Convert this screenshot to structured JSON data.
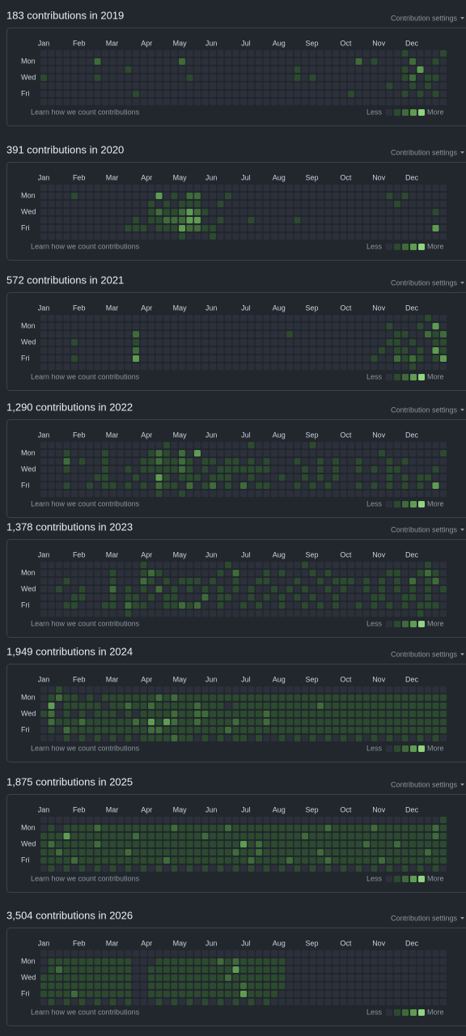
{
  "years": [
    {
      "title": "183 contributions in 2019",
      "settings": "Contribution settings",
      "months": [
        "Jan",
        "Feb",
        "Mar",
        "Apr",
        "May",
        "Jun",
        "Jul",
        "Aug",
        "Sep",
        "Oct",
        "Nov",
        "Dec"
      ],
      "days": [
        "Mon",
        "Wed",
        "Fri"
      ],
      "learn": "Learn how we count contributions",
      "less": "Less",
      "more": "More",
      "grid": [
        "00000000000000000000000000000000000000000000000100001",
        "00000002000000000020000000000000000000000201000020010",
        "00000000000100000000000000000000010000000000000103000",
        "10000001000000000001000000000000010100000000000120110",
        "00000000000000000000000000000000000000000000010010100",
        "00000000000010000000000000000000000000001000000101010",
        "00000000000000000000000000000000000000000000000000000"
      ]
    },
    {
      "title": "391 contributions in 2020",
      "settings": "Contribution settings",
      "months": [
        "Jan",
        "Feb",
        "Mar",
        "Apr",
        "May",
        "Jun",
        "Jul",
        "Aug",
        "Sep",
        "Oct",
        "Nov",
        "Dec"
      ],
      "days": [
        "Mon",
        "Wed",
        "Fri"
      ],
      "learn": "Learn how we count contributions",
      "less": "Less",
      "more": "More",
      "grid": [
        "00000000000000000000000000000000000000000000000000000",
        "00001000000000030102200010000000000000000000010100000",
        "00000000000000101011100100000000000000000000001000000",
        "00000000000000121123210000000000000000000000000000010",
        "00000000000010112223300100010000010000000000000000000",
        "00000000000111011132211000000000000000000000000000030",
        "00000000000000000010001000000000000000000000000000000"
      ]
    },
    {
      "title": "572 contributions in 2021",
      "settings": "Contribution settings",
      "months": [
        "Jan",
        "Feb",
        "Mar",
        "Apr",
        "May",
        "Jun",
        "Jul",
        "Aug",
        "Sep",
        "Oct",
        "Nov",
        "Dec"
      ],
      "days": [
        "Mon",
        "Wed",
        "Fri"
      ],
      "learn": "Learn how we count contributions",
      "less": "Less",
      "more": "More",
      "grid": [
        "00000000000000000000000000000000000000000000000000100",
        "00000000000000000000000000000000000000000000010001030",
        "00000000000020000000000000000000100000000000001100212",
        "00001000000010000000000000000000000000000000011010011",
        "00000000000020000000000000000000000000000000101101031",
        "00001000000030000000000000000000000000000001002121013",
        "00000000000000000000000000000000000000000000000010000"
      ]
    },
    {
      "title": "1,290 contributions in 2022",
      "settings": "Contribution settings",
      "months": [
        "Jan",
        "Feb",
        "Mar",
        "Apr",
        "May",
        "Jun",
        "Jul",
        "Aug",
        "Sep",
        "Oct",
        "Nov",
        "Dec"
      ],
      "days": [
        "Mon",
        "Wed",
        "Fri"
      ],
      "learn": "Learn how we count contributions",
      "less": "Less",
      "more": "More",
      "grid": [
        "00000000000000001000000000010000000100000000000000000",
        "00010000100000121020300000000000000000000000100000001",
        "00020100100001121121011011010100010010100100010100000",
        "00010000100101111121010111111100001010100101011000010",
        "00000001100010031011101110010001001010100000010101100",
        "00010010110101021102012010201100010101000101010101030",
        "00000000000000010010000000000000000000000000000000000"
      ]
    },
    {
      "title": "1,378 contributions in 2023",
      "settings": "Contribution settings",
      "months": [
        "Jan",
        "Feb",
        "Mar",
        "Apr",
        "May",
        "Jun",
        "Jul",
        "Aug",
        "Sep",
        "Oct",
        "Nov",
        "Dec"
      ],
      "days": [
        "Mon",
        "Wed",
        "Fri"
      ],
      "learn": "Learn how we count contributions",
      "less": "Less",
      "more": "More",
      "grid": [
        "00000000000001000000000010000000001000000000000000100",
        "00000000010001210000000102000101000101000000011001210",
        "00010000010002101011101001001100010010111010101020120",
        "00100100020101020101010101010010101001010010101010101",
        "00001100010110101100020110010101010100100001100110100",
        "00011000110211001121200100101001001010100101010101110",
        "00000000000100000000000000000000000000000000000001000"
      ]
    },
    {
      "title": "1,949 contributions in 2024",
      "settings": "Contribution settings",
      "months": [
        "Jan",
        "Feb",
        "Mar",
        "Apr",
        "May",
        "Jun",
        "Jul",
        "Aug",
        "Sep",
        "Oct",
        "Nov",
        "Dec"
      ],
      "days": [
        "Mon",
        "Wed",
        "Fri"
      ],
      "learn": "Learn how we count contributions",
      "less": "Less",
      "more": "More",
      "grid": [
        "00100000000000000000000000000000000000000000000000000",
        "01211010111111121211111111111111111111111111111111111",
        "03011111011211211111211101111111111121111111111111111",
        "12010101110101111211221111111211111111111111111111111",
        "02111211111121313211211112111211111111111111111111111",
        "01021111111111221111111121111111111111111111111111111",
        "00010101010101111211010101101001010101010101010101010"
      ]
    },
    {
      "title": "1,875 contributions in 2025",
      "settings": "Contribution settings",
      "months": [
        "Jan",
        "Feb",
        "Mar",
        "Apr",
        "May",
        "Jun",
        "Jul",
        "Aug",
        "Sep",
        "Oct",
        "Nov",
        "Dec"
      ],
      "days": [
        "Mon",
        "Wed",
        "Fri"
      ],
      "learn": "Learn how we count contributions",
      "less": "Less",
      "more": "More",
      "grid": [
        "00000000000000000000000000000000000000000000000000001",
        "01011112111111111211111121111111111112111112111111121",
        "11131111111121111111121111111111112111111111111111121",
        "12111112111111111111111111312111111111111121112111111",
        "11211111111211111111111112112111111121111111111111211",
        "11112111111111112111111111121111211112111111211111111",
        "01010101010101010101010101010101010101010101010101010"
      ]
    },
    {
      "title": "3,504 contributions in 2026",
      "settings": "Contribution settings",
      "months": [
        "Jan",
        "Feb",
        "Mar",
        "Apr",
        "May",
        "Jun",
        "Jul",
        "Aug",
        "Sep",
        "Oct",
        "Nov",
        "Dec"
      ],
      "days": [
        "Mon",
        "Wed",
        "Fri"
      ],
      "learn": "Learn how we count contributions",
      "less": "Less",
      "more": "More",
      "grid": [
        "00000000000000000000000000000000000000000000000000000",
        "01111111111100011111111212111111000000000000000000000",
        "01211111111100111111111113111111000000000000000000000",
        "11111111111100111111111121111111000000000000000000000",
        "11111111111100111111111111211111000000000000000000000",
        "11112111111100111111111111311110000000000000000000000",
        "01010101010100010101010101010100000000000000000000000"
      ]
    }
  ]
}
